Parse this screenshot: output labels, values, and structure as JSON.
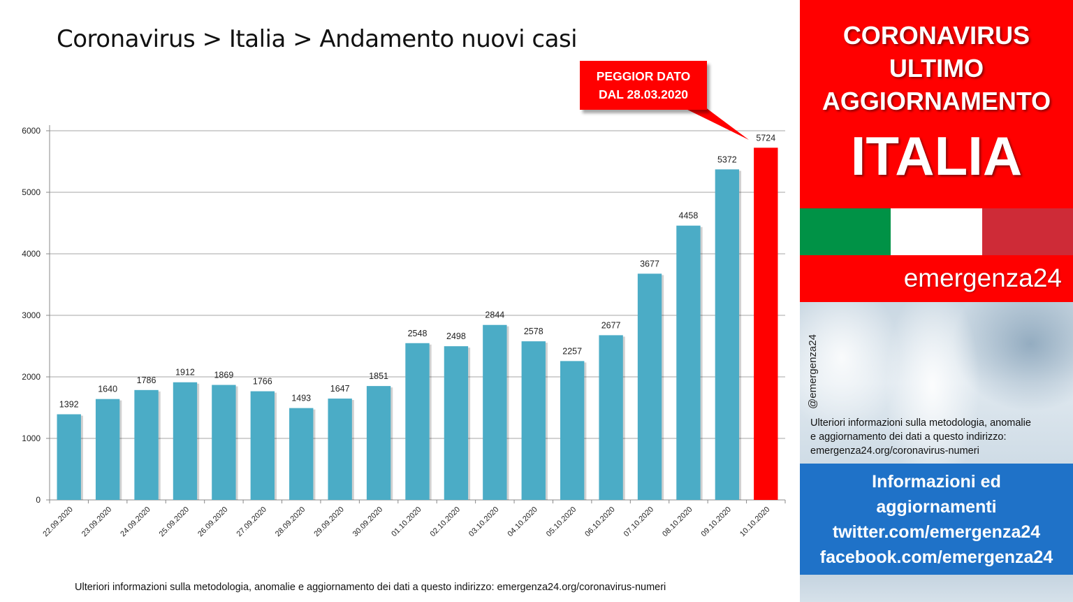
{
  "title": "Coronavirus > Italia > Andamento nuovi casi",
  "callout": {
    "line1": "PEGGIOR DATO",
    "line2": "DAL 28.03.2020"
  },
  "footer_note": "Ulteriori informazioni sulla metodologia, anomalie e aggiornamento dei dati a questo indirizzo: emergenza24.org/coronavirus-numeri",
  "sidebar": {
    "headline1": "CORONAVIRUS",
    "headline2": "ULTIMO",
    "headline3": "AGGIORNAMENTO",
    "country": "ITALIA",
    "brand": "emergenza24",
    "handle": "@emergenza24",
    "note_line1": "Ulteriori informazioni sulla metodologia, anomalie",
    "note_line2": "e aggiornamento dei dati a questo indirizzo:",
    "note_line3": "emergenza24.org/coronavirus-numeri",
    "info_line1": "Informazioni ed",
    "info_line2": "aggiornamenti",
    "info_line3": "twitter.com/emergenza24",
    "info_line4": "facebook.com/emergenza24",
    "colors": {
      "red": "#ff0000",
      "blue": "#1f72c8",
      "flag_green": "#009246",
      "flag_white": "#ffffff",
      "flag_red": "#ce2b37"
    }
  },
  "chart_data": {
    "type": "bar",
    "categories": [
      "22.09.2020",
      "23.09.2020",
      "24.09.2020",
      "25.09.2020",
      "26.09.2020",
      "27.09.2020",
      "28.09.2020",
      "29.09.2020",
      "30.09.2020",
      "01.10.2020",
      "02.10.2020",
      "03.10.2020",
      "04.10.2020",
      "05.10.2020",
      "06.10.2020",
      "07.10.2020",
      "08.10.2020",
      "09.10.2020",
      "10.10.2020"
    ],
    "values": [
      1392,
      1640,
      1786,
      1912,
      1869,
      1766,
      1493,
      1647,
      1851,
      2548,
      2498,
      2844,
      2578,
      2257,
      2677,
      3677,
      4458,
      5372,
      5724
    ],
    "data_labels": [
      "1392",
      "1640",
      "1786",
      "1912",
      "1869",
      "1766",
      "1493",
      "1647",
      "1851",
      "2548",
      "2498",
      "2844",
      "2578",
      "2257",
      "2677",
      "3677",
      "4458",
      "5372",
      "5724"
    ],
    "yticks": [
      "0",
      "1000",
      "2000",
      "3000",
      "4000",
      "5000",
      "6000"
    ],
    "ylim": [
      0,
      6000
    ],
    "grid": true,
    "bar_color": "#4bacc6",
    "highlight_color": "#ff0000",
    "highlight_last": true
  }
}
